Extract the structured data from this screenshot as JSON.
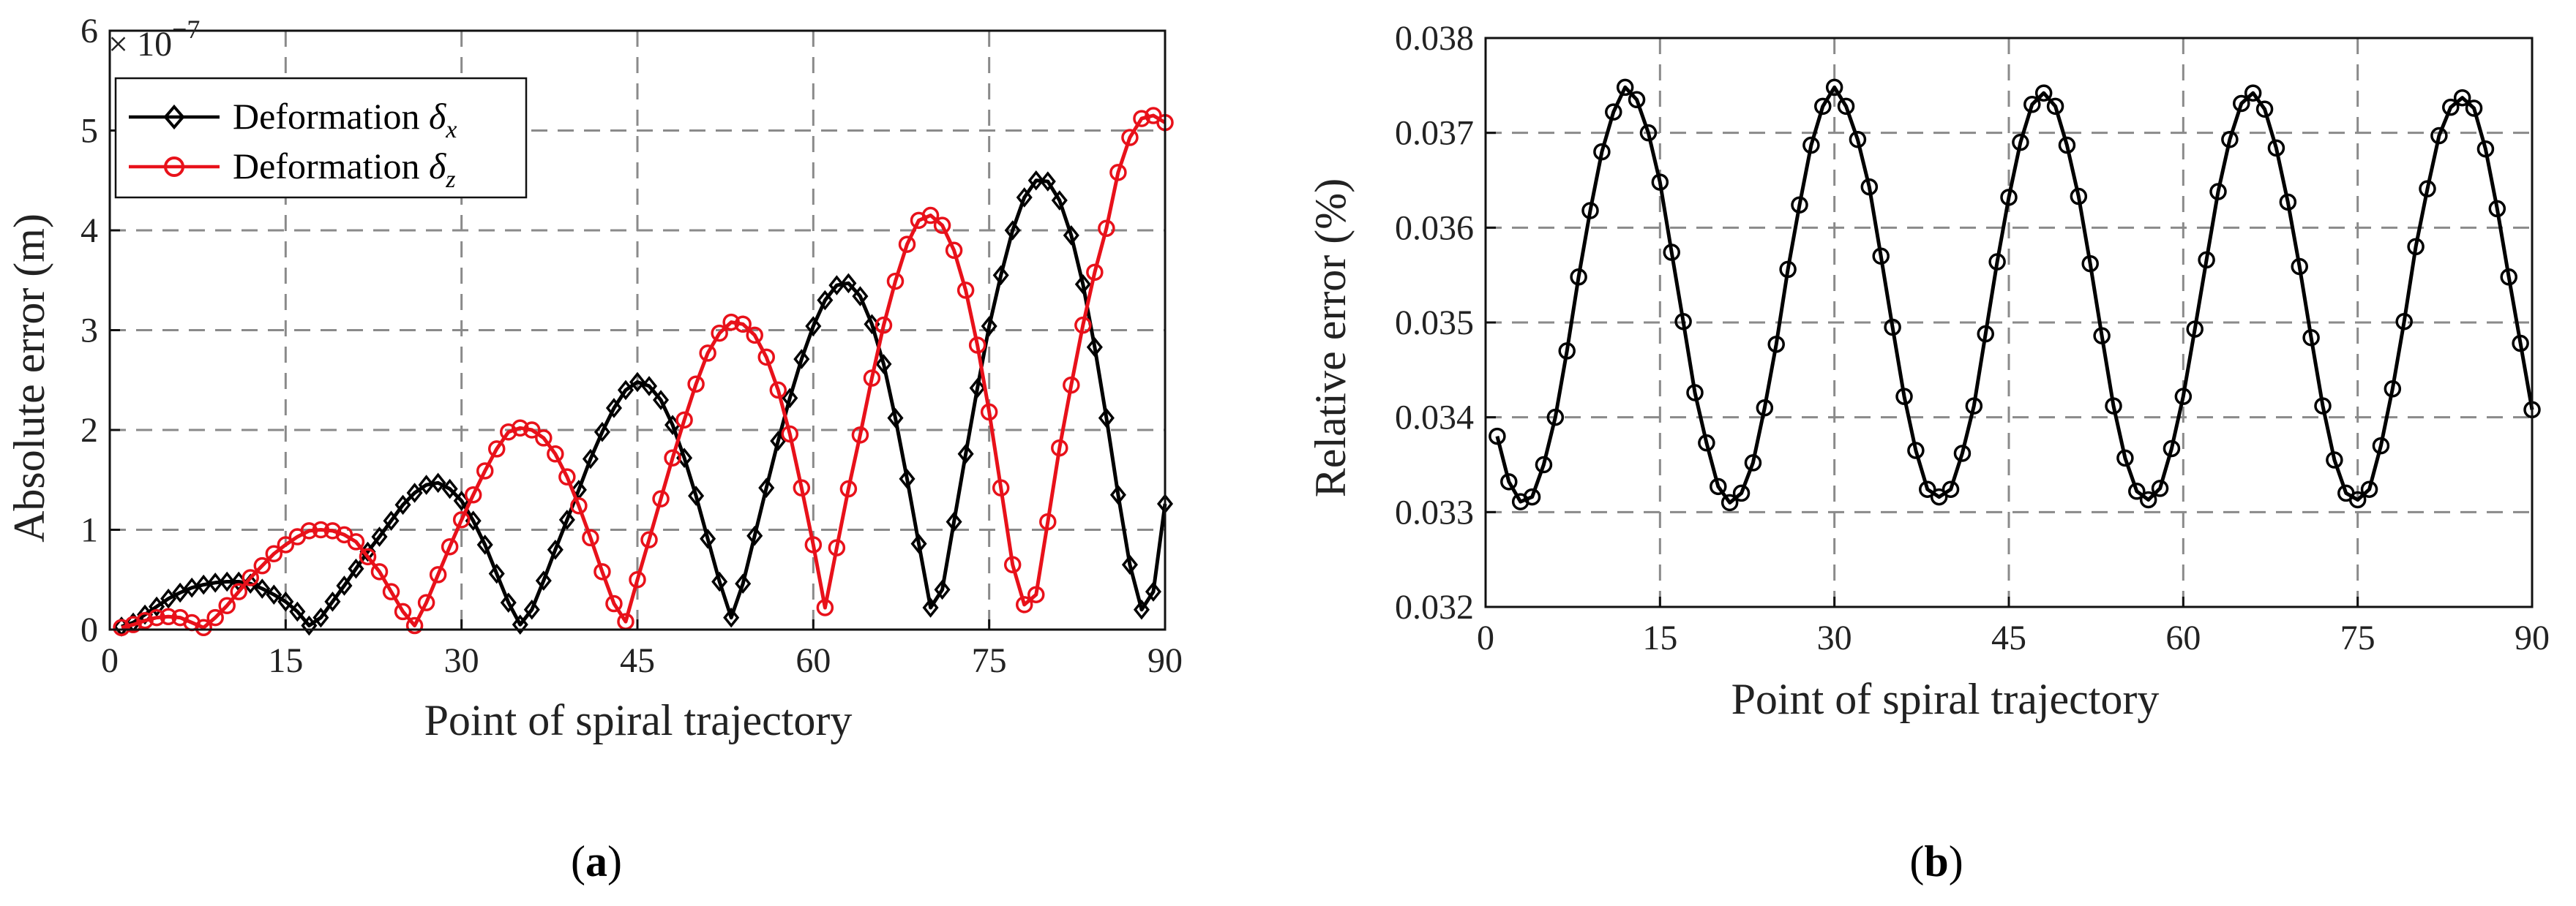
{
  "figure": {
    "panel_labels": [
      {
        "open": "(",
        "letter": "a",
        "close": ")"
      },
      {
        "open": "(",
        "letter": "b",
        "close": ")"
      }
    ]
  },
  "chart_data": [
    {
      "type": "line",
      "title": "",
      "xlabel": "Point of spiral trajectory",
      "ylabel": "Absolute error (m)",
      "y_scale_label": {
        "prefix": "× 10",
        "exponent": "−7"
      },
      "xlim": [
        0,
        90
      ],
      "ylim": [
        0,
        6
      ],
      "xticks": [
        0,
        15,
        30,
        45,
        60,
        75,
        90
      ],
      "yticks": [
        0,
        1,
        2,
        3,
        4,
        5,
        6
      ],
      "grid": true,
      "legend_position": "top-left",
      "x": [
        1,
        2,
        3,
        4,
        5,
        6,
        7,
        8,
        9,
        10,
        11,
        12,
        13,
        14,
        15,
        16,
        17,
        18,
        19,
        20,
        21,
        22,
        23,
        24,
        25,
        26,
        27,
        28,
        29,
        30,
        31,
        32,
        33,
        34,
        35,
        36,
        37,
        38,
        39,
        40,
        41,
        42,
        43,
        44,
        45,
        46,
        47,
        48,
        49,
        50,
        51,
        52,
        53,
        54,
        55,
        56,
        57,
        58,
        59,
        60,
        61,
        62,
        63,
        64,
        65,
        66,
        67,
        68,
        69,
        70,
        71,
        72,
        73,
        74,
        75,
        76,
        77,
        78,
        79,
        80,
        81,
        82,
        83,
        84,
        85,
        86,
        87,
        88,
        89,
        90
      ],
      "series": [
        {
          "name": "Deformation δx",
          "legend": {
            "base": "Deformation ",
            "symbol": "δ",
            "subscript": "x"
          },
          "color": "#000000",
          "marker": "diamond",
          "values": [
            0.03,
            0.07,
            0.15,
            0.23,
            0.31,
            0.37,
            0.42,
            0.45,
            0.47,
            0.48,
            0.48,
            0.46,
            0.41,
            0.35,
            0.28,
            0.18,
            0.04,
            0.12,
            0.28,
            0.44,
            0.61,
            0.78,
            0.93,
            1.09,
            1.25,
            1.37,
            1.45,
            1.47,
            1.41,
            1.29,
            1.09,
            0.85,
            0.56,
            0.27,
            0.05,
            0.2,
            0.49,
            0.8,
            1.1,
            1.4,
            1.71,
            1.98,
            2.22,
            2.4,
            2.48,
            2.44,
            2.3,
            2.05,
            1.72,
            1.34,
            0.91,
            0.48,
            0.12,
            0.46,
            0.94,
            1.42,
            1.89,
            2.32,
            2.71,
            3.04,
            3.3,
            3.45,
            3.47,
            3.34,
            3.06,
            2.66,
            2.12,
            1.51,
            0.86,
            0.22,
            0.4,
            1.08,
            1.76,
            2.42,
            3.04,
            3.55,
            4.0,
            4.33,
            4.5,
            4.49,
            4.3,
            3.95,
            3.46,
            2.83,
            2.12,
            1.35,
            0.65,
            0.2,
            0.38,
            1.26
          ]
        },
        {
          "name": "Deformation δz",
          "legend": {
            "base": "Deformation ",
            "symbol": "δ",
            "subscript": "z"
          },
          "color": "#e8111a",
          "marker": "circle",
          "values": [
            0.02,
            0.05,
            0.09,
            0.12,
            0.13,
            0.12,
            0.07,
            0.02,
            0.12,
            0.24,
            0.38,
            0.52,
            0.64,
            0.76,
            0.85,
            0.93,
            0.99,
            1.0,
            0.99,
            0.95,
            0.88,
            0.73,
            0.58,
            0.38,
            0.18,
            0.04,
            0.27,
            0.55,
            0.83,
            1.1,
            1.35,
            1.59,
            1.81,
            1.98,
            2.02,
            2.0,
            1.92,
            1.76,
            1.53,
            1.24,
            0.92,
            0.58,
            0.26,
            0.08,
            0.5,
            0.9,
            1.31,
            1.72,
            2.1,
            2.46,
            2.77,
            2.97,
            3.08,
            3.06,
            2.95,
            2.73,
            2.4,
            1.96,
            1.42,
            0.85,
            0.22,
            0.82,
            1.41,
            1.95,
            2.52,
            3.05,
            3.49,
            3.86,
            4.1,
            4.15,
            4.05,
            3.8,
            3.4,
            2.85,
            2.18,
            1.42,
            0.65,
            0.25,
            0.35,
            1.08,
            1.82,
            2.45,
            3.05,
            3.58,
            4.02,
            4.58,
            4.93,
            5.12,
            5.15,
            5.08
          ]
        }
      ]
    },
    {
      "type": "line",
      "title": "",
      "xlabel": "Point of spiral trajectory",
      "ylabel": "Relative error (%)",
      "xlim": [
        0,
        90
      ],
      "ylim": [
        0.032,
        0.038
      ],
      "xticks": [
        0,
        15,
        30,
        45,
        60,
        75,
        90
      ],
      "yticks": [
        0.032,
        0.033,
        0.034,
        0.035,
        0.036,
        0.037,
        0.038
      ],
      "ytick_labels": [
        "0.032",
        "0.033",
        "0.034",
        "0.035",
        "0.036",
        "0.037",
        "0.038"
      ],
      "grid": true,
      "series": [
        {
          "name": "Relative error",
          "color": "#000000",
          "marker": "circle",
          "x": [
            1,
            2,
            3,
            4,
            5,
            6,
            7,
            8,
            9,
            10,
            11,
            12,
            13,
            14,
            15,
            16,
            17,
            18,
            19,
            20,
            21,
            22,
            23,
            24,
            25,
            26,
            27,
            28,
            29,
            30,
            31,
            32,
            33,
            34,
            35,
            36,
            37,
            38,
            39,
            40,
            41,
            42,
            43,
            44,
            45,
            46,
            47,
            48,
            49,
            50,
            51,
            52,
            53,
            54,
            55,
            56,
            57,
            58,
            59,
            60,
            61,
            62,
            63,
            64,
            65,
            66,
            67,
            68,
            69,
            70,
            71,
            72,
            73,
            74,
            75,
            76,
            77,
            78,
            79,
            80,
            81,
            82,
            83,
            84,
            85,
            86,
            87,
            88,
            89,
            90
          ],
          "values": [
            0.0338,
            0.03332,
            0.03311,
            0.03316,
            0.0335,
            0.034,
            0.0347,
            0.03548,
            0.03618,
            0.0368,
            0.03722,
            0.03748,
            0.03735,
            0.037,
            0.03648,
            0.03574,
            0.03501,
            0.03426,
            0.03373,
            0.03327,
            0.0331,
            0.0332,
            0.03352,
            0.0341,
            0.03477,
            0.03556,
            0.03624,
            0.03687,
            0.03728,
            0.03748,
            0.03728,
            0.03693,
            0.03643,
            0.0357,
            0.03495,
            0.03422,
            0.03365,
            0.03324,
            0.03316,
            0.03324,
            0.03362,
            0.03412,
            0.03488,
            0.03564,
            0.03632,
            0.0369,
            0.0373,
            0.03742,
            0.03728,
            0.03687,
            0.03633,
            0.03562,
            0.03486,
            0.03412,
            0.03357,
            0.03322,
            0.03313,
            0.03325,
            0.03367,
            0.03422,
            0.03493,
            0.03566,
            0.03638,
            0.03693,
            0.03731,
            0.03742,
            0.03725,
            0.03684,
            0.03627,
            0.03559,
            0.03484,
            0.03412,
            0.03355,
            0.0332,
            0.03313,
            0.03324,
            0.0337,
            0.0343,
            0.03501,
            0.0358,
            0.03641,
            0.03697,
            0.03727,
            0.03737,
            0.03726,
            0.03683,
            0.0362,
            0.03548,
            0.03478,
            0.03408
          ]
        }
      ]
    }
  ]
}
